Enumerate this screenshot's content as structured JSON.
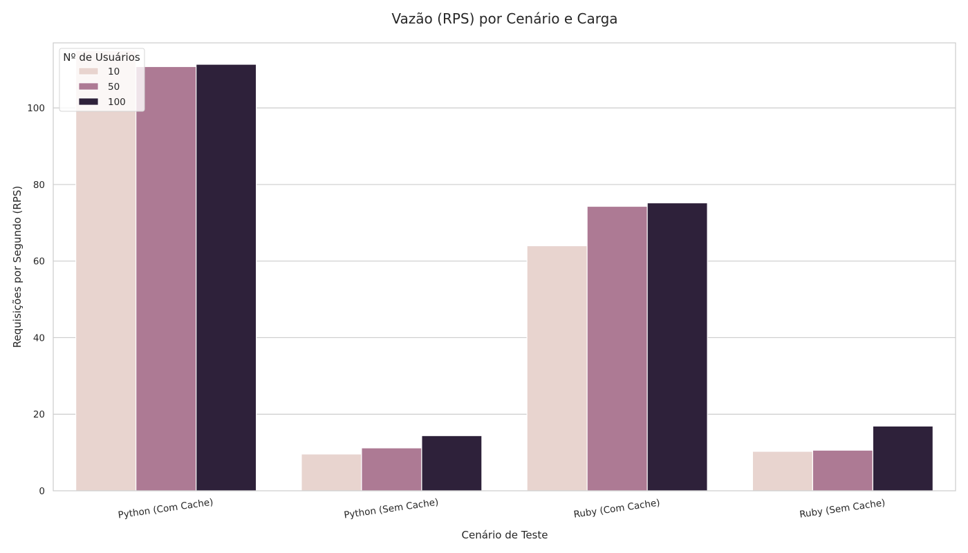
{
  "chart_data": {
    "type": "bar",
    "title": "Vazão (RPS) por Cenário e Carga",
    "xlabel": "Cenário de Teste",
    "ylabel": "Requisições por Segundo (RPS)",
    "categories": [
      "Python (Com Cache)",
      "Python (Sem Cache)",
      "Ruby (Com Cache)",
      "Ruby (Sem Cache)"
    ],
    "series": [
      {
        "name": "10",
        "values": [
          115,
          9.6,
          64,
          10.3
        ],
        "color": "#e8d4cf"
      },
      {
        "name": "50",
        "values": [
          110.8,
          11.2,
          74.3,
          10.6
        ],
        "color": "#ad7a94"
      },
      {
        "name": "100",
        "values": [
          111.4,
          14.4,
          75.2,
          16.9
        ],
        "color": "#2e213a"
      }
    ],
    "ylim": [
      0,
      117
    ],
    "yticks": [
      0,
      20,
      40,
      60,
      80,
      100
    ],
    "grid": true,
    "grid_axis": "y",
    "legend": {
      "title": "Nº de Usuários",
      "placement": "top-left"
    }
  }
}
